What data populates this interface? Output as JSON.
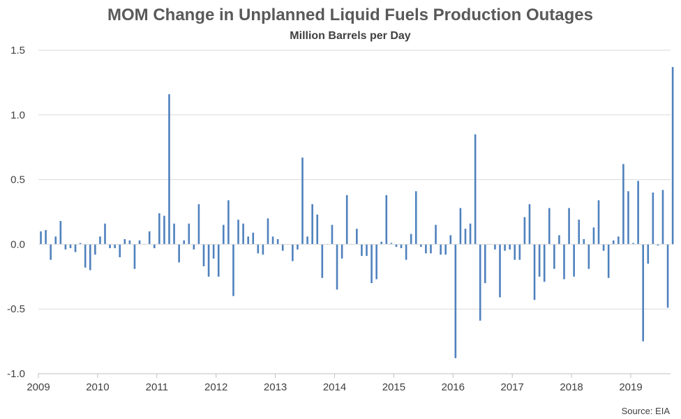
{
  "chart_data": {
    "type": "bar",
    "title": "MOM Change in Unplanned Liquid Fuels Production Outages",
    "subtitle": "Million Barrels per Day",
    "source": "Source: EIA",
    "xlabel": "",
    "ylabel": "",
    "ylim": [
      -1.0,
      1.5
    ],
    "y_ticks": [
      1.5,
      1.0,
      0.5,
      0.0,
      -0.5,
      -1.0
    ],
    "y_tick_labels": [
      "1.5",
      "1.0",
      "0.5",
      "0.0",
      "-0.5",
      "-1.0"
    ],
    "x_tick_labels": [
      "2009",
      "2010",
      "2011",
      "2012",
      "2013",
      "2014",
      "2015",
      "2016",
      "2017",
      "2018",
      "2019"
    ],
    "grid": "horizontal",
    "bar_color": "#4f81bd",
    "series": [
      {
        "frequency": "monthly",
        "start": "2009-01",
        "end": "2019-09",
        "values": [
          0.1,
          0.11,
          -0.12,
          0.06,
          0.18,
          -0.04,
          -0.03,
          -0.06,
          0.01,
          -0.18,
          -0.2,
          -0.08,
          0.06,
          0.16,
          -0.03,
          -0.03,
          -0.1,
          0.04,
          0.03,
          -0.19,
          0.03,
          0.0,
          0.1,
          -0.03,
          0.24,
          0.22,
          1.16,
          0.16,
          -0.14,
          0.03,
          0.16,
          -0.04,
          0.31,
          -0.17,
          -0.25,
          -0.11,
          -0.25,
          0.15,
          0.34,
          -0.4,
          0.19,
          0.16,
          0.06,
          0.09,
          -0.07,
          -0.08,
          0.2,
          0.06,
          0.04,
          -0.05,
          0.0,
          -0.13,
          -0.04,
          0.67,
          0.06,
          0.31,
          0.23,
          -0.26,
          0.0,
          0.15,
          -0.35,
          -0.11,
          0.38,
          0.0,
          0.12,
          -0.09,
          -0.09,
          -0.3,
          -0.27,
          0.02,
          0.38,
          0.01,
          -0.02,
          -0.03,
          -0.12,
          0.08,
          0.41,
          -0.02,
          -0.07,
          -0.07,
          0.15,
          -0.08,
          -0.08,
          0.07,
          -0.88,
          0.28,
          0.12,
          0.16,
          0.85,
          -0.59,
          -0.3,
          0.0,
          -0.04,
          -0.41,
          -0.05,
          -0.04,
          -0.12,
          -0.12,
          0.21,
          0.31,
          -0.43,
          -0.25,
          -0.29,
          0.28,
          -0.19,
          0.07,
          -0.27,
          0.28,
          -0.25,
          0.19,
          0.04,
          -0.19,
          0.13,
          0.34,
          -0.05,
          -0.26,
          0.03,
          0.06,
          0.62,
          0.41,
          0.01,
          0.49,
          -0.75,
          -0.15,
          0.4,
          -0.01,
          0.42,
          -0.49,
          1.37
        ]
      }
    ]
  }
}
